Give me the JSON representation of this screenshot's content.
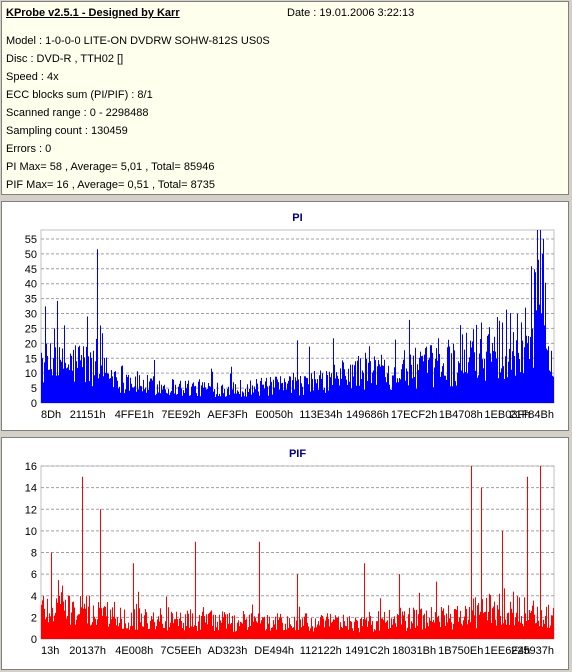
{
  "info": {
    "title": "KProbe v2.5.1 - Designed by Karr",
    "date": "Date : 19.01.2006 3:22:13",
    "lines": [
      "Model : 1-0-0-0 LITE-ON DVDRW SOHW-812S  US0S",
      "Disc : DVD-R , TTH02 []",
      "Speed : 4x",
      "ECC blocks sum (PI/PIF) : 8/1",
      "Scanned range : 0 - 2298488",
      "Sampling count : 130459",
      "Errors : 0",
      "PI Max= 58 , Average= 5,01 , Total= 85946",
      "PIF Max= 16 , Average= 0,51 , Total= 8735"
    ]
  },
  "chart_data": [
    {
      "type": "bar",
      "title": "PI",
      "color": "#0000ff",
      "ylim": [
        0,
        58
      ],
      "yticks": [
        0,
        5,
        10,
        15,
        20,
        25,
        30,
        35,
        40,
        45,
        50,
        55
      ],
      "xtick_labels": [
        "8Dh",
        "21151h",
        "4FFE1h",
        "7EE92h",
        "AEF3Fh",
        "E0050h",
        "113E34h",
        "149686h",
        "17ECF2h",
        "1B4708h",
        "1EB03Fh",
        "21F84Bh"
      ],
      "grid": true,
      "profile_x": [
        0,
        0.04,
        0.08,
        0.1,
        0.11,
        0.13,
        0.2,
        0.3,
        0.4,
        0.5,
        0.55,
        0.6,
        0.65,
        0.7,
        0.75,
        0.8,
        0.85,
        0.9,
        0.93,
        0.95,
        0.96,
        0.975,
        0.985,
        1.0
      ],
      "profile_y": [
        13,
        12,
        14,
        11,
        20,
        10,
        6,
        5,
        5,
        6,
        7,
        10,
        11,
        11,
        12,
        13,
        17,
        20,
        20,
        22,
        28,
        35,
        20,
        12
      ],
      "spikes": [
        [
          0.09,
          29
        ],
        [
          0.025,
          25
        ],
        [
          0.045,
          26
        ],
        [
          0.5,
          21
        ],
        [
          0.64,
          19
        ],
        [
          0.86,
          27
        ],
        [
          0.9,
          27
        ],
        [
          0.93,
          30
        ],
        [
          0.945,
          32
        ],
        [
          0.975,
          58
        ],
        [
          0.98,
          55
        ],
        [
          0.97,
          48
        ],
        [
          0.99,
          19
        ]
      ]
    },
    {
      "type": "bar",
      "title": "PIF",
      "color": "#ff0000",
      "ylim": [
        0,
        16
      ],
      "yticks": [
        0,
        2,
        4,
        6,
        8,
        10,
        12,
        14,
        16
      ],
      "xtick_labels": [
        "13h",
        "20137h",
        "4E008h",
        "7C5EEh",
        "AD323h",
        "DE494h",
        "112122h",
        "1491C2h",
        "18031Bh",
        "1B750Eh",
        "1EE6F4h",
        "225937h"
      ],
      "grid": true,
      "profile_x": [
        0,
        0.1,
        0.2,
        0.4,
        0.6,
        0.8,
        0.9,
        1.0
      ],
      "profile_y": [
        3,
        2.5,
        2,
        1.5,
        1.5,
        2,
        3,
        2
      ],
      "spikes": [
        [
          0.08,
          15
        ],
        [
          0.115,
          12
        ],
        [
          0.02,
          8
        ],
        [
          0.3,
          9
        ],
        [
          0.425,
          9
        ],
        [
          0.84,
          16
        ],
        [
          0.86,
          14
        ],
        [
          0.9,
          10
        ],
        [
          0.95,
          15
        ],
        [
          0.975,
          16
        ],
        [
          0.63,
          7
        ],
        [
          0.7,
          6
        ],
        [
          0.5,
          6
        ],
        [
          0.18,
          7
        ]
      ]
    }
  ]
}
